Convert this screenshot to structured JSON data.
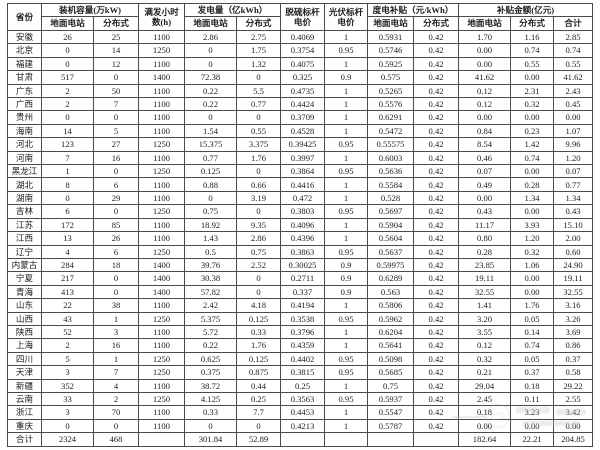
{
  "table": {
    "header": {
      "province": "省份",
      "capacity_group": "装机容量(万kW)",
      "full_load_hours": "满发小时数(h)",
      "generation_group": "发电量（亿kWh）",
      "desulfurization_price": "脱硫标杆电价",
      "pv_price": "光伏标杆电价",
      "per_kwh_subsidy_group": "度电补贴（元/kWh）",
      "subsidy_amount_group": "补贴金额(亿元)",
      "sub_ground": "地面电站",
      "sub_distributed": "分布式",
      "sub_total": "合计"
    },
    "column_keys": [
      "province",
      "capacity_ground",
      "capacity_distributed",
      "full_load_hours",
      "generation_ground",
      "generation_distributed",
      "desulfurization_price",
      "pv_price",
      "per_kwh_subsidy_ground",
      "per_kwh_subsidy_distributed",
      "subsidy_amount_ground",
      "subsidy_amount_distributed",
      "subsidy_amount_total"
    ],
    "rows": [
      [
        "安徽",
        "26",
        "25",
        "1100",
        "2.86",
        "2.75",
        "0.4069",
        "1",
        "0.5931",
        "0.42",
        "1.70",
        "1.16",
        "2.85"
      ],
      [
        "北京",
        "0",
        "14",
        "1250",
        "0",
        "1.75",
        "0.3754",
        "0.95",
        "0.5746",
        "0.42",
        "0.00",
        "0.74",
        "0.74"
      ],
      [
        "福建",
        "0",
        "12",
        "1100",
        "0",
        "1.32",
        "0.4075",
        "1",
        "0.5925",
        "0.42",
        "0.00",
        "0.55",
        "0.55"
      ],
      [
        "甘肃",
        "517",
        "0",
        "1400",
        "72.38",
        "0",
        "0.325",
        "0.9",
        "0.575",
        "0.42",
        "41.62",
        "0.00",
        "41.62"
      ],
      [
        "广东",
        "2",
        "50",
        "1100",
        "0.22",
        "5.5",
        "0.4735",
        "1",
        "0.5265",
        "0.42",
        "0.12",
        "2.31",
        "2.43"
      ],
      [
        "广西",
        "2",
        "7",
        "1100",
        "0.22",
        "0.77",
        "0.4424",
        "1",
        "0.5576",
        "0.42",
        "0.12",
        "0.32",
        "0.45"
      ],
      [
        "贵州",
        "0",
        "0",
        "1100",
        "0",
        "0",
        "0.3709",
        "1",
        "0.6291",
        "0.42",
        "0.00",
        "0.00",
        "0.00"
      ],
      [
        "海南",
        "14",
        "5",
        "1100",
        "1.54",
        "0.55",
        "0.4528",
        "1",
        "0.5472",
        "0.42",
        "0.84",
        "0.23",
        "1.07"
      ],
      [
        "河北",
        "123",
        "27",
        "1250",
        "15.375",
        "3.375",
        "0.39425",
        "0.95",
        "0.55575",
        "0.42",
        "8.54",
        "1.42",
        "9.96"
      ],
      [
        "河南",
        "7",
        "16",
        "1100",
        "0.77",
        "1.76",
        "0.3997",
        "1",
        "0.6003",
        "0.42",
        "0.46",
        "0.74",
        "1.20"
      ],
      [
        "黑龙江",
        "1",
        "0",
        "1250",
        "0.125",
        "0",
        "0.3864",
        "0.95",
        "0.5636",
        "0.42",
        "0.07",
        "0.00",
        "0.07"
      ],
      [
        "湖北",
        "8",
        "6",
        "1100",
        "0.88",
        "0.66",
        "0.4416",
        "1",
        "0.5584",
        "0.42",
        "0.49",
        "0.28",
        "0.77"
      ],
      [
        "湖南",
        "0",
        "29",
        "1100",
        "0",
        "3.19",
        "0.472",
        "1",
        "0.528",
        "0.42",
        "0.00",
        "1.34",
        "1.34"
      ],
      [
        "吉林",
        "6",
        "0",
        "1250",
        "0.75",
        "0",
        "0.3803",
        "0.95",
        "0.5697",
        "0.42",
        "0.43",
        "0.00",
        "0.43"
      ],
      [
        "江苏",
        "172",
        "85",
        "1100",
        "18.92",
        "9.35",
        "0.4096",
        "1",
        "0.5904",
        "0.42",
        "11.17",
        "3.93",
        "15.10"
      ],
      [
        "江西",
        "13",
        "26",
        "1100",
        "1.43",
        "2.86",
        "0.4396",
        "1",
        "0.5604",
        "0.42",
        "0.80",
        "1.20",
        "2.00"
      ],
      [
        "辽宁",
        "4",
        "6",
        "1250",
        "0.5",
        "0.75",
        "0.3863",
        "0.95",
        "0.5637",
        "0.42",
        "0.28",
        "0.32",
        "0.60"
      ],
      [
        "内蒙古",
        "284",
        "18",
        "1400",
        "39.76",
        "2.52",
        "0.30025",
        "0.9",
        "0.59975",
        "0.42",
        "23.85",
        "1.06",
        "24.90"
      ],
      [
        "宁夏",
        "217",
        "0",
        "1400",
        "30.38",
        "0",
        "0.2711",
        "0.9",
        "0.6289",
        "0.42",
        "19.11",
        "0.00",
        "19.11"
      ],
      [
        "青海",
        "413",
        "0",
        "1400",
        "57.82",
        "0",
        "0.337",
        "0.9",
        "0.563",
        "0.42",
        "32.55",
        "0.00",
        "32.55"
      ],
      [
        "山东",
        "22",
        "38",
        "1100",
        "2.42",
        "4.18",
        "0.4194",
        "1",
        "0.5806",
        "0.42",
        "1.41",
        "1.76",
        "3.16"
      ],
      [
        "山西",
        "43",
        "1",
        "1250",
        "5.375",
        "0.125",
        "0.3538",
        "0.95",
        "0.5962",
        "0.42",
        "3.20",
        "0.05",
        "3.26"
      ],
      [
        "陕西",
        "52",
        "3",
        "1100",
        "5.72",
        "0.33",
        "0.3796",
        "1",
        "0.6204",
        "0.42",
        "3.55",
        "0.14",
        "3.69"
      ],
      [
        "上海",
        "2",
        "16",
        "1100",
        "0.22",
        "1.76",
        "0.4359",
        "1",
        "0.5641",
        "0.42",
        "0.12",
        "0.74",
        "0.86"
      ],
      [
        "四川",
        "5",
        "1",
        "1250",
        "0.625",
        "0.125",
        "0.4402",
        "0.95",
        "0.5098",
        "0.42",
        "0.32",
        "0.05",
        "0.37"
      ],
      [
        "天津",
        "3",
        "7",
        "1250",
        "0.375",
        "0.875",
        "0.3815",
        "0.95",
        "0.5685",
        "0.42",
        "0.21",
        "0.37",
        "0.58"
      ],
      [
        "新疆",
        "352",
        "4",
        "1100",
        "38.72",
        "0.44",
        "0.25",
        "1",
        "0.75",
        "0.42",
        "29.04",
        "0.18",
        "29.22"
      ],
      [
        "云南",
        "33",
        "2",
        "1250",
        "4.125",
        "0.25",
        "0.3563",
        "0.95",
        "0.5937",
        "0.42",
        "2.45",
        "0.11",
        "2.55"
      ],
      [
        "浙江",
        "3",
        "70",
        "1100",
        "0.33",
        "7.7",
        "0.4453",
        "1",
        "0.5547",
        "0.42",
        "0.18",
        "3.23",
        "3.42"
      ],
      [
        "重庆",
        "0",
        "0",
        "1100",
        "0",
        "0",
        "0.4213",
        "1",
        "0.5787",
        "0.42",
        "0.00",
        "0.00",
        "0.00"
      ],
      [
        "合计",
        "2324",
        "468",
        "",
        "301.84",
        "52.89",
        "",
        "",
        "",
        "",
        "182.64",
        "22.21",
        "204.85"
      ]
    ]
  }
}
